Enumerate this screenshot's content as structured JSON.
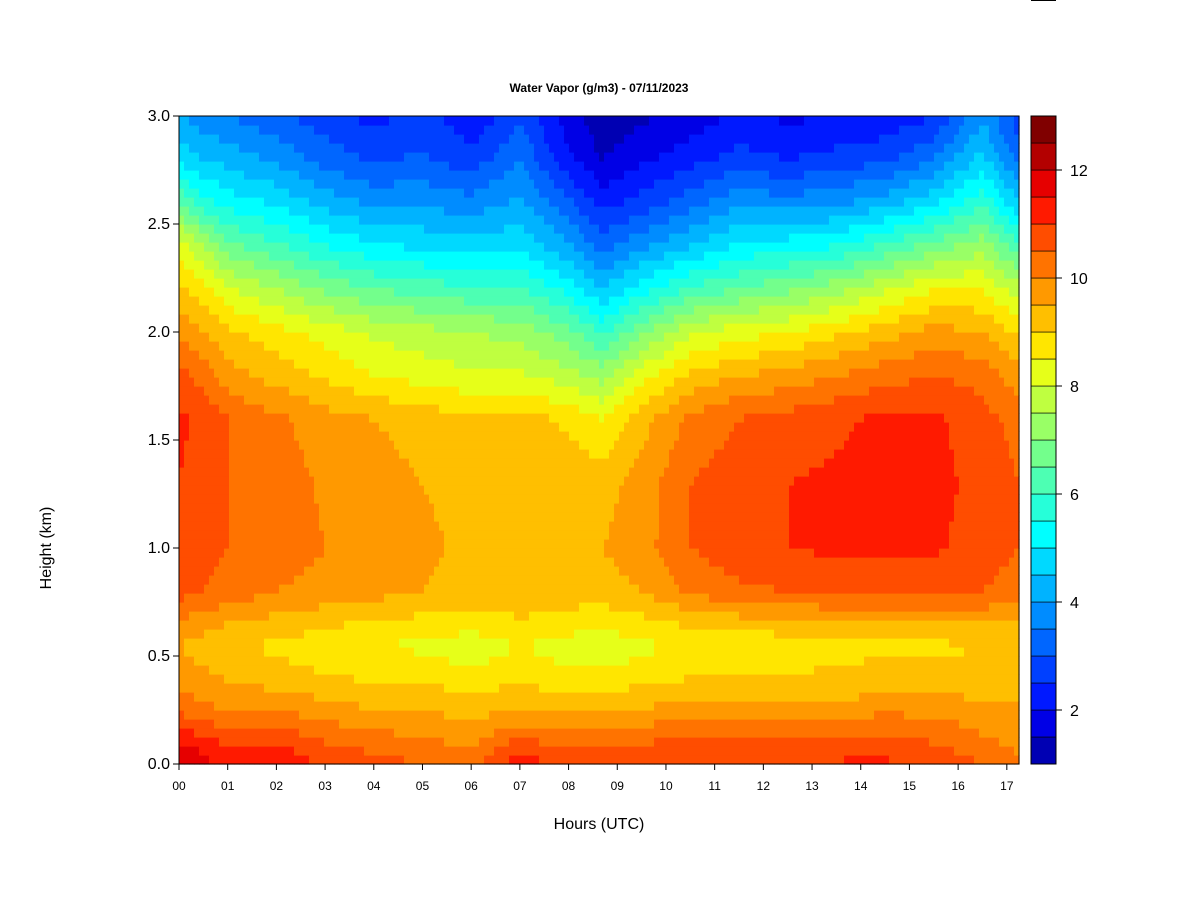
{
  "chart_data": {
    "type": "heatmap",
    "title": "Water Vapor (g/m3) - 07/11/2023",
    "xlabel": "Hours (UTC)",
    "ylabel": "Height (km)",
    "x_ticks": [
      "00",
      "01",
      "02",
      "03",
      "04",
      "05",
      "06",
      "07",
      "08",
      "09",
      "10",
      "11",
      "12",
      "13",
      "14",
      "15",
      "16",
      "17"
    ],
    "y_ticks": [
      "0.0",
      "0.5",
      "1.0",
      "1.5",
      "2.0",
      "2.5",
      "3.0"
    ],
    "xlim": [
      0,
      17.25
    ],
    "ylim": [
      0.0,
      3.0
    ],
    "colorbar": {
      "ticks": [
        "2",
        "4",
        "6",
        "8",
        "10",
        "12"
      ],
      "range": [
        1,
        13
      ],
      "levels": 24,
      "colors": [
        "#00007f",
        "#0000b3",
        "#0000e6",
        "#0019ff",
        "#0040ff",
        "#0066ff",
        "#008cff",
        "#00b3ff",
        "#00d9ff",
        "#00ffff",
        "#26ffd9",
        "#4dffb3",
        "#73ff8c",
        "#99ff66",
        "#bfff40",
        "#e6ff19",
        "#ffe600",
        "#ffbf00",
        "#ff9900",
        "#ff7300",
        "#ff4d00",
        "#ff1a00",
        "#e60000",
        "#b30000",
        "#800000"
      ]
    },
    "profile_height_km": [
      0.0,
      0.1,
      0.2,
      0.3,
      0.45,
      0.55,
      0.65,
      0.8,
      1.0,
      1.3,
      1.6,
      1.8,
      2.0,
      2.2,
      2.4,
      2.6,
      2.8,
      3.0
    ],
    "profiles": [
      {
        "hour": 0.0,
        "values": [
          12.5,
          12.0,
          11.2,
          10.6,
          10.2,
          10.0,
          10.4,
          11.2,
          11.4,
          11.5,
          11.6,
          11.2,
          10.4,
          9.6,
          8.8,
          7.0,
          5.4,
          4.6
        ]
      },
      {
        "hour": 0.5,
        "values": [
          12.2,
          11.8,
          11.0,
          10.5,
          10.0,
          9.8,
          10.2,
          11.0,
          11.2,
          11.3,
          11.4,
          10.8,
          10.0,
          9.2,
          8.0,
          6.2,
          5.0,
          4.2
        ]
      },
      {
        "hour": 1.0,
        "values": [
          11.8,
          11.4,
          10.8,
          10.2,
          9.8,
          9.6,
          10.0,
          10.8,
          11.0,
          11.0,
          11.0,
          10.2,
          9.6,
          8.6,
          7.2,
          5.8,
          4.8,
          4.0
        ]
      },
      {
        "hour": 2.0,
        "values": [
          12.0,
          11.5,
          10.8,
          10.2,
          9.6,
          9.4,
          9.8,
          10.5,
          10.8,
          10.8,
          10.6,
          9.8,
          9.2,
          8.0,
          6.6,
          5.4,
          4.4,
          3.6
        ]
      },
      {
        "hour": 3.0,
        "values": [
          11.4,
          11.0,
          10.5,
          10.0,
          9.4,
          9.2,
          9.6,
          10.3,
          10.5,
          10.4,
          10.2,
          9.4,
          8.8,
          7.4,
          6.0,
          4.8,
          3.8,
          3.2
        ]
      },
      {
        "hour": 4.0,
        "values": [
          11.2,
          10.8,
          10.3,
          9.8,
          9.2,
          9.0,
          9.4,
          10.2,
          10.4,
          10.2,
          10.0,
          9.0,
          8.4,
          7.0,
          5.6,
          4.4,
          3.4,
          2.8
        ]
      },
      {
        "hour": 5.0,
        "values": [
          11.0,
          10.6,
          10.2,
          9.8,
          9.2,
          8.9,
          9.3,
          10.0,
          10.1,
          10.0,
          9.8,
          8.8,
          8.2,
          6.8,
          5.4,
          4.4,
          3.6,
          3.2
        ]
      },
      {
        "hour": 6.0,
        "values": [
          10.8,
          10.4,
          10.0,
          9.6,
          9.0,
          8.7,
          9.2,
          9.8,
          9.9,
          9.8,
          9.6,
          8.6,
          8.0,
          6.6,
          5.2,
          4.2,
          3.2,
          2.6
        ]
      },
      {
        "hour": 7.0,
        "values": [
          11.8,
          11.2,
          10.4,
          9.8,
          9.2,
          9.0,
          9.4,
          9.9,
          10.0,
          9.9,
          9.7,
          8.6,
          7.8,
          6.6,
          5.4,
          4.6,
          4.0,
          3.4
        ]
      },
      {
        "hour": 8.0,
        "values": [
          11.4,
          10.8,
          10.2,
          9.6,
          9.0,
          8.8,
          9.2,
          9.8,
          9.9,
          9.8,
          9.4,
          8.2,
          7.2,
          5.8,
          4.6,
          3.6,
          2.6,
          2.2
        ]
      },
      {
        "hour": 8.7,
        "values": [
          11.4,
          10.8,
          10.2,
          9.6,
          9.0,
          8.7,
          9.1,
          9.8,
          10.0,
          9.8,
          9.0,
          7.8,
          6.4,
          5.0,
          3.8,
          2.8,
          2.0,
          1.6
        ]
      },
      {
        "hour": 9.5,
        "values": [
          11.6,
          11.0,
          10.4,
          9.8,
          9.1,
          8.9,
          9.3,
          10.0,
          10.3,
          10.2,
          9.8,
          8.8,
          7.4,
          5.8,
          4.4,
          3.2,
          2.4,
          1.9
        ]
      },
      {
        "hour": 10.5,
        "values": [
          11.6,
          11.1,
          10.5,
          9.9,
          9.3,
          9.1,
          9.6,
          10.6,
          11.0,
          11.0,
          10.6,
          9.6,
          8.4,
          6.6,
          5.0,
          3.8,
          2.8,
          2.2
        ]
      },
      {
        "hour": 11.5,
        "values": [
          11.6,
          11.1,
          10.5,
          9.9,
          9.3,
          9.1,
          9.7,
          10.9,
          11.3,
          11.3,
          11.0,
          10.0,
          8.8,
          7.0,
          5.6,
          4.4,
          3.2,
          2.6
        ]
      },
      {
        "hour": 12.5,
        "values": [
          11.6,
          11.1,
          10.6,
          10.0,
          9.4,
          9.2,
          9.8,
          11.0,
          11.5,
          11.5,
          11.2,
          10.2,
          9.0,
          7.4,
          5.8,
          4.2,
          3.0,
          2.4
        ]
      },
      {
        "hour": 13.5,
        "values": [
          11.6,
          11.1,
          10.6,
          10.0,
          9.5,
          9.3,
          9.9,
          11.1,
          11.6,
          11.6,
          11.4,
          10.5,
          9.4,
          7.8,
          6.0,
          4.4,
          3.2,
          2.5
        ]
      },
      {
        "hour": 14.5,
        "values": [
          11.6,
          11.2,
          10.7,
          10.1,
          9.6,
          9.4,
          10.0,
          11.2,
          11.6,
          11.7,
          11.6,
          10.8,
          9.8,
          8.4,
          6.6,
          4.8,
          3.4,
          2.6
        ]
      },
      {
        "hour": 15.5,
        "values": [
          11.4,
          11.0,
          10.6,
          10.1,
          9.6,
          9.4,
          10.0,
          11.2,
          11.6,
          11.7,
          11.6,
          11.0,
          10.2,
          9.0,
          7.2,
          5.4,
          4.0,
          3.0
        ]
      },
      {
        "hour": 16.5,
        "values": [
          11.0,
          10.6,
          10.3,
          10.0,
          9.6,
          9.5,
          10.0,
          11.0,
          11.2,
          11.3,
          11.2,
          10.8,
          10.0,
          9.0,
          7.8,
          6.4,
          5.2,
          4.4
        ]
      },
      {
        "hour": 17.25,
        "values": [
          10.6,
          10.4,
          10.2,
          10.0,
          9.6,
          9.5,
          9.9,
          10.8,
          11.0,
          11.0,
          10.8,
          10.2,
          9.4,
          8.2,
          6.6,
          5.0,
          3.8,
          3.2
        ]
      }
    ]
  }
}
